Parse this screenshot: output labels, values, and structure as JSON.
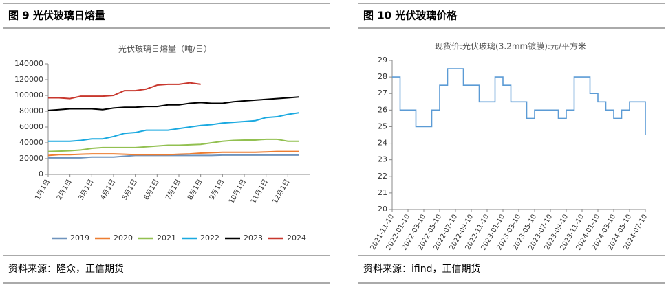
{
  "chart_data": [
    {
      "type": "line",
      "caption": "图 9  光伏玻璃日熔量",
      "title": "光伏玻璃日熔量（吨/日）",
      "source": "资料来源：隆众，正信期货",
      "categories": [
        "1月1日",
        null,
        "2月1日",
        null,
        "3月1日",
        null,
        "4月1日",
        null,
        "5月1日",
        null,
        "6月1日",
        null,
        "7月1日",
        null,
        "8月1日",
        null,
        "9月1日",
        null,
        "10月1日",
        null,
        "11月1日",
        null,
        "12月1日",
        null
      ],
      "ylim": [
        0,
        140000
      ],
      "yticks": [
        0,
        20000,
        40000,
        60000,
        80000,
        100000,
        120000,
        140000
      ],
      "legend": "bottom",
      "series": [
        {
          "name": "2019",
          "color": "#6f93bd",
          "values": [
            21000,
            21000,
            21000,
            21000,
            22000,
            22000,
            22000,
            23000,
            24000,
            24000,
            24000,
            24000,
            24000,
            24000,
            24000,
            24000,
            24500,
            24500,
            24500,
            24500,
            24500,
            24500,
            24500,
            24500
          ]
        },
        {
          "name": "2020",
          "color": "#ed7d31",
          "values": [
            24000,
            25000,
            25000,
            25500,
            26000,
            26000,
            26000,
            25500,
            25000,
            25000,
            25000,
            25000,
            25500,
            26000,
            27000,
            27500,
            28000,
            28000,
            28000,
            28000,
            28500,
            29000,
            29000,
            29000
          ]
        },
        {
          "name": "2021",
          "color": "#92c050",
          "values": [
            29000,
            29500,
            30000,
            31000,
            33000,
            34000,
            34000,
            34000,
            34000,
            35000,
            36000,
            37000,
            37000,
            37500,
            38000,
            40000,
            42000,
            43000,
            43500,
            43500,
            44500,
            44500,
            42000,
            42000
          ]
        },
        {
          "name": "2022",
          "color": "#1aa9e0",
          "values": [
            42000,
            42000,
            42000,
            43000,
            45000,
            45000,
            48000,
            52000,
            53000,
            56000,
            56000,
            56000,
            58000,
            60000,
            62000,
            63000,
            65000,
            66000,
            67000,
            68000,
            72000,
            73000,
            76000,
            78000
          ]
        },
        {
          "name": "2023",
          "color": "#000000",
          "values": [
            81000,
            82000,
            83000,
            83000,
            83000,
            82000,
            84000,
            85000,
            85000,
            86000,
            86000,
            88000,
            88000,
            90000,
            91000,
            90000,
            90000,
            92000,
            93000,
            94000,
            95000,
            96000,
            97000,
            98000
          ]
        },
        {
          "name": "2024",
          "color": "#c8372d",
          "values": [
            97000,
            97000,
            96000,
            99000,
            99000,
            99000,
            100000,
            106000,
            106000,
            108000,
            113000,
            114000,
            114000,
            116000,
            114000,
            null,
            null,
            null,
            null,
            null,
            null,
            null,
            null,
            null
          ]
        }
      ]
    },
    {
      "type": "line",
      "caption": "图 10  光伏玻璃价格",
      "title": "现货价:光伏玻璃(3.2mm镀膜):元/平方米",
      "source": "资料来源：ifind，正信期货",
      "step": true,
      "categories": [
        "2021-11-10",
        null,
        "2022-01-10",
        null,
        "2022-03-10",
        null,
        "2022-05-10",
        null,
        "2022-07-10",
        null,
        "2022-09-10",
        null,
        "2022-11-10",
        null,
        "2023-01-10",
        null,
        "2023-03-10",
        null,
        "2023-05-10",
        null,
        "2023-07-10",
        null,
        "2023-09-10",
        null,
        "2023-11-10",
        null,
        "2024-01-10",
        null,
        "2024-03-10",
        null,
        "2024-05-10",
        null,
        "2024-07-10"
      ],
      "ylim": [
        20,
        29
      ],
      "yticks": [
        20,
        21,
        22,
        23,
        24,
        25,
        26,
        27,
        28,
        29
      ],
      "series": [
        {
          "name": "现货价:光伏玻璃(3.2mm镀膜)",
          "color": "#5b9bd5",
          "values": [
            28,
            26,
            26,
            25,
            25,
            26,
            27.5,
            28.5,
            28.5,
            27.5,
            27.5,
            26.5,
            26.5,
            28,
            27.5,
            26.5,
            26.5,
            25.5,
            26,
            26,
            26,
            25.5,
            26,
            28,
            28,
            27,
            26.5,
            26,
            25.5,
            26,
            26.5,
            26.5,
            24.5
          ]
        }
      ]
    }
  ]
}
